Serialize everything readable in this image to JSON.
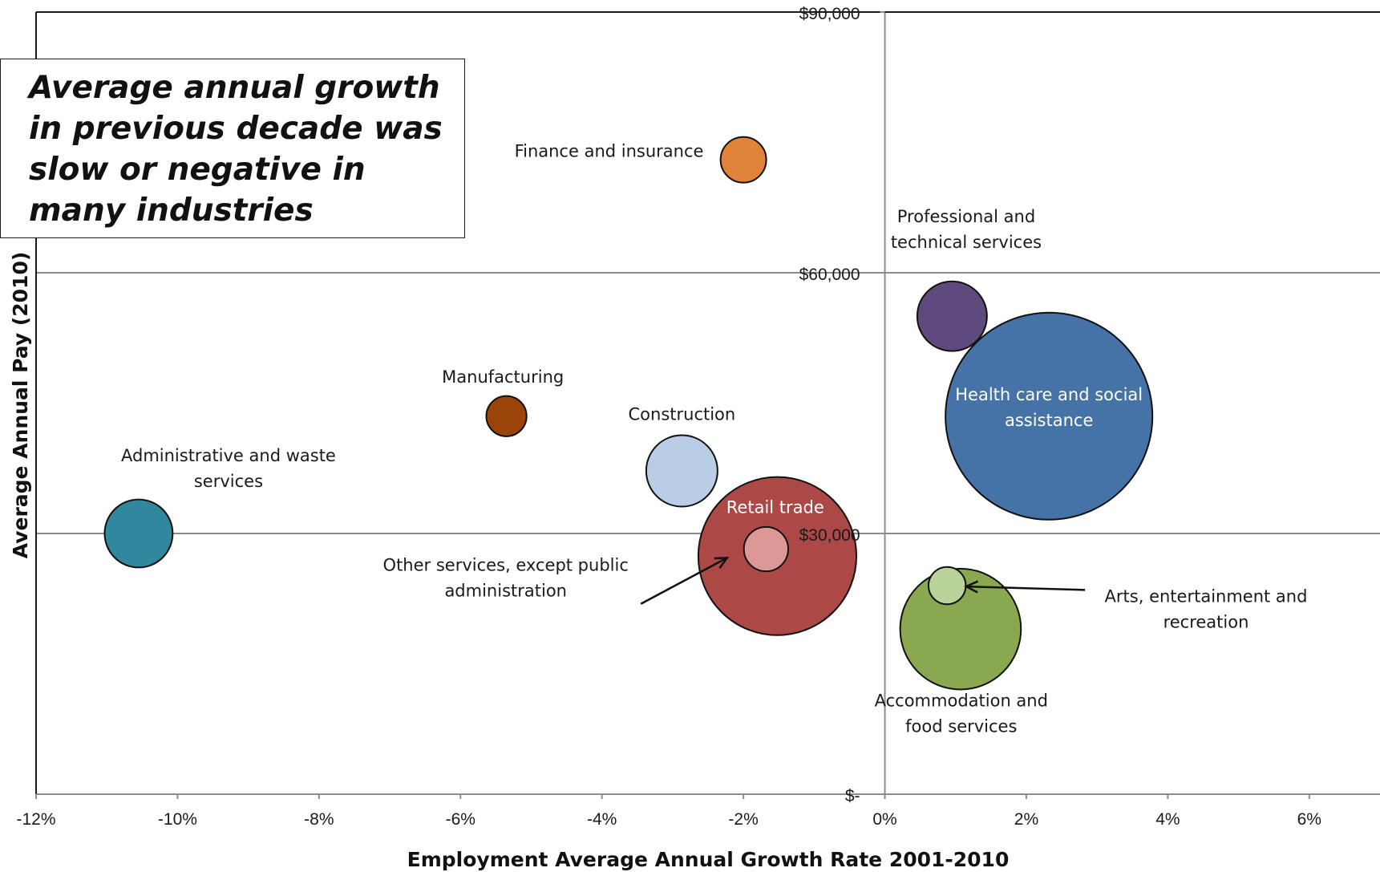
{
  "chart_data": {
    "type": "scatter",
    "subtype": "bubble",
    "title": "",
    "xlabel": "Employment Average Annual Growth Rate 2001-2010",
    "ylabel": "Average Annual Pay (2010)",
    "xlim": [
      -0.12,
      0.07
    ],
    "ylim": [
      0,
      90000
    ],
    "x_ticks": [
      -0.12,
      -0.1,
      -0.08,
      -0.06,
      -0.04,
      -0.02,
      0,
      0.02,
      0.04,
      0.06
    ],
    "x_tick_labels": [
      "-12%",
      "-10%",
      "-8%",
      "-6%",
      "-4%",
      "-2%",
      "0%",
      "2%",
      "4%",
      "6%"
    ],
    "y_ticks": [
      0,
      30000,
      60000,
      90000
    ],
    "y_tick_labels": [
      "$-",
      "$30,000",
      "$60,000",
      "$90,000"
    ],
    "grid": "major y lines and y axis at x = 0",
    "legend": "none",
    "annotation": "Average annual growth in previous decade was slow or negative in many industries",
    "series": [
      {
        "name": "Finance and insurance",
        "label_lines": [
          "Finance and insurance"
        ],
        "x": -0.02,
        "y": 73000,
        "size": 0.9,
        "color": "#e0843c"
      },
      {
        "name": "Professional and technical services",
        "label_lines": [
          "Professional and",
          "technical services"
        ],
        "x": 0.0095,
        "y": 55000,
        "size": 2.1,
        "color": "#5e4a7d"
      },
      {
        "name": "Health care and social assistance",
        "label_lines": [
          "Health care and social",
          "assistance"
        ],
        "x": 0.0232,
        "y": 43500,
        "size": 18.5,
        "color": "#4673a7"
      },
      {
        "name": "Manufacturing",
        "label_lines": [
          "Manufacturing"
        ],
        "x": -0.0535,
        "y": 43500,
        "size": 0.7,
        "color": "#9a4409"
      },
      {
        "name": "Construction",
        "label_lines": [
          "Construction"
        ],
        "x": -0.0287,
        "y": 37200,
        "size": 2.2,
        "color": "#bacde6"
      },
      {
        "name": "Administrative and waste services",
        "label_lines": [
          "Administrative and waste",
          "services"
        ],
        "x": -0.1055,
        "y": 30000,
        "size": 2.0,
        "color": "#31889e"
      },
      {
        "name": "Retail trade",
        "label_lines": [
          "Retail trade"
        ],
        "x": -0.0152,
        "y": 27400,
        "size": 10.8,
        "color": "#ac4846"
      },
      {
        "name": "Other services, except public administration",
        "label_lines": [
          "Other services, except public",
          "administration"
        ],
        "x": -0.0168,
        "y": 28200,
        "size": 0.85,
        "color": "#dc9896"
      },
      {
        "name": "Accommodation and food services",
        "label_lines": [
          "Accommodation and",
          "food services"
        ],
        "x": 0.0107,
        "y": 19000,
        "size": 6.3,
        "color": "#89a850"
      },
      {
        "name": "Arts, entertainment and recreation",
        "label_lines": [
          "Arts, entertainment and",
          "recreation"
        ],
        "x": 0.0088,
        "y": 24000,
        "size": 0.6,
        "color": "#bad39a"
      }
    ]
  }
}
